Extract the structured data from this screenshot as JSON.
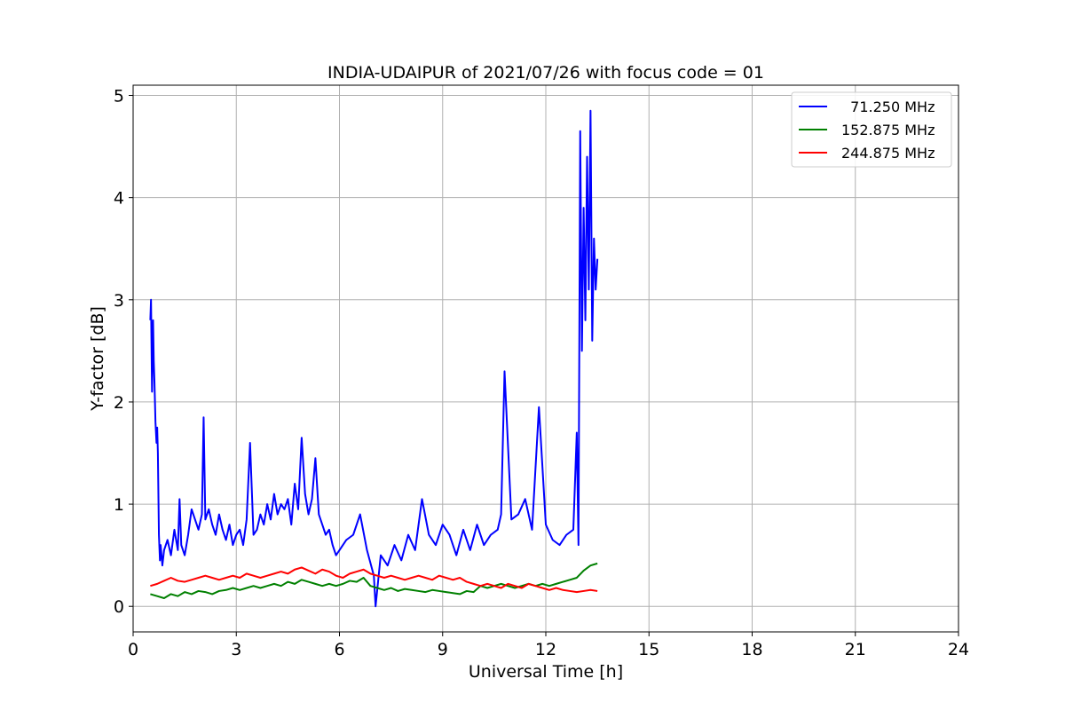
{
  "chart_data": {
    "type": "line",
    "title": "INDIA-UDAIPUR of 2021/07/26 with focus code = 01",
    "xlabel": "Universal Time [h]",
    "ylabel": "Y-factor [dB]",
    "xlim": [
      0,
      24
    ],
    "ylim": [
      -0.25,
      5.1
    ],
    "xticks": [
      0,
      3,
      6,
      9,
      12,
      15,
      18,
      21,
      24
    ],
    "xtick_labels": [
      "0",
      "3",
      "6",
      "9",
      "12",
      "15",
      "18",
      "21",
      "24"
    ],
    "yticks": [
      0,
      1,
      2,
      3,
      4,
      5
    ],
    "ytick_labels": [
      "0",
      "1",
      "2",
      "3",
      "4",
      "5"
    ],
    "grid": true,
    "legend_position": "top-right",
    "series": [
      {
        "name": "  71.250 MHz",
        "color": "#0000ff",
        "x": [
          0.5,
          0.52,
          0.55,
          0.58,
          0.6,
          0.62,
          0.65,
          0.68,
          0.7,
          0.72,
          0.75,
          0.78,
          0.8,
          0.85,
          0.9,
          1.0,
          1.1,
          1.2,
          1.3,
          1.35,
          1.4,
          1.5,
          1.6,
          1.7,
          1.8,
          1.9,
          2.0,
          2.05,
          2.1,
          2.2,
          2.3,
          2.4,
          2.5,
          2.6,
          2.7,
          2.8,
          2.9,
          3.0,
          3.1,
          3.2,
          3.3,
          3.4,
          3.5,
          3.6,
          3.7,
          3.8,
          3.9,
          4.0,
          4.1,
          4.2,
          4.3,
          4.4,
          4.5,
          4.6,
          4.7,
          4.8,
          4.9,
          5.0,
          5.1,
          5.2,
          5.3,
          5.4,
          5.5,
          5.6,
          5.7,
          5.8,
          5.9,
          6.0,
          6.2,
          6.4,
          6.6,
          6.8,
          7.0,
          7.05,
          7.2,
          7.4,
          7.6,
          7.8,
          8.0,
          8.2,
          8.4,
          8.6,
          8.8,
          9.0,
          9.2,
          9.4,
          9.6,
          9.8,
          10.0,
          10.2,
          10.4,
          10.6,
          10.7,
          10.8,
          11.0,
          11.2,
          11.4,
          11.6,
          11.8,
          12.0,
          12.2,
          12.4,
          12.6,
          12.8,
          12.9,
          12.95,
          13.0,
          13.05,
          13.1,
          13.15,
          13.2,
          13.25,
          13.3,
          13.35,
          13.4,
          13.45,
          13.5
        ],
        "y": [
          2.8,
          3.0,
          2.1,
          2.8,
          2.4,
          2.2,
          1.8,
          1.6,
          1.75,
          1.5,
          0.7,
          0.45,
          0.6,
          0.4,
          0.55,
          0.65,
          0.5,
          0.75,
          0.55,
          1.05,
          0.6,
          0.5,
          0.7,
          0.95,
          0.85,
          0.75,
          0.9,
          1.85,
          0.85,
          0.95,
          0.8,
          0.7,
          0.9,
          0.75,
          0.65,
          0.8,
          0.6,
          0.7,
          0.75,
          0.6,
          0.85,
          1.6,
          0.7,
          0.75,
          0.9,
          0.8,
          1.0,
          0.85,
          1.1,
          0.9,
          1.0,
          0.95,
          1.05,
          0.8,
          1.2,
          0.95,
          1.65,
          1.1,
          0.9,
          1.05,
          1.45,
          0.9,
          0.8,
          0.7,
          0.75,
          0.6,
          0.5,
          0.55,
          0.65,
          0.7,
          0.9,
          0.55,
          0.3,
          0.0,
          0.5,
          0.4,
          0.6,
          0.45,
          0.7,
          0.55,
          1.05,
          0.7,
          0.6,
          0.8,
          0.7,
          0.5,
          0.75,
          0.55,
          0.8,
          0.6,
          0.7,
          0.75,
          0.9,
          2.3,
          0.85,
          0.9,
          1.05,
          0.75,
          1.95,
          0.8,
          0.65,
          0.6,
          0.7,
          0.75,
          1.7,
          0.6,
          4.65,
          2.5,
          3.9,
          2.8,
          4.4,
          3.1,
          4.85,
          2.6,
          3.6,
          3.1,
          3.4
        ]
      },
      {
        "name": "152.875 MHz",
        "color": "#008000",
        "x": [
          0.5,
          0.7,
          0.9,
          1.1,
          1.3,
          1.5,
          1.7,
          1.9,
          2.1,
          2.3,
          2.5,
          2.7,
          2.9,
          3.1,
          3.3,
          3.5,
          3.7,
          3.9,
          4.1,
          4.3,
          4.5,
          4.7,
          4.9,
          5.1,
          5.3,
          5.5,
          5.7,
          5.9,
          6.1,
          6.3,
          6.5,
          6.7,
          6.9,
          7.1,
          7.3,
          7.5,
          7.7,
          7.9,
          8.1,
          8.3,
          8.5,
          8.7,
          8.9,
          9.1,
          9.3,
          9.5,
          9.7,
          9.9,
          10.1,
          10.3,
          10.5,
          10.7,
          10.9,
          11.1,
          11.3,
          11.5,
          11.7,
          11.9,
          12.1,
          12.3,
          12.5,
          12.7,
          12.9,
          13.1,
          13.3,
          13.5
        ],
        "y": [
          0.12,
          0.1,
          0.08,
          0.12,
          0.1,
          0.14,
          0.12,
          0.15,
          0.14,
          0.12,
          0.15,
          0.16,
          0.18,
          0.16,
          0.18,
          0.2,
          0.18,
          0.2,
          0.22,
          0.2,
          0.24,
          0.22,
          0.26,
          0.24,
          0.22,
          0.2,
          0.22,
          0.2,
          0.22,
          0.25,
          0.24,
          0.28,
          0.2,
          0.18,
          0.16,
          0.18,
          0.15,
          0.17,
          0.16,
          0.15,
          0.14,
          0.16,
          0.15,
          0.14,
          0.13,
          0.12,
          0.15,
          0.14,
          0.2,
          0.18,
          0.2,
          0.22,
          0.2,
          0.18,
          0.2,
          0.22,
          0.2,
          0.22,
          0.2,
          0.22,
          0.24,
          0.26,
          0.28,
          0.35,
          0.4,
          0.42
        ]
      },
      {
        "name": "244.875 MHz",
        "color": "#ff0000",
        "x": [
          0.5,
          0.7,
          0.9,
          1.1,
          1.3,
          1.5,
          1.7,
          1.9,
          2.1,
          2.3,
          2.5,
          2.7,
          2.9,
          3.1,
          3.3,
          3.5,
          3.7,
          3.9,
          4.1,
          4.3,
          4.5,
          4.7,
          4.9,
          5.1,
          5.3,
          5.5,
          5.7,
          5.9,
          6.1,
          6.3,
          6.5,
          6.7,
          6.9,
          7.1,
          7.3,
          7.5,
          7.7,
          7.9,
          8.1,
          8.3,
          8.5,
          8.7,
          8.9,
          9.1,
          9.3,
          9.5,
          9.7,
          9.9,
          10.1,
          10.3,
          10.5,
          10.7,
          10.9,
          11.1,
          11.3,
          11.5,
          11.7,
          11.9,
          12.1,
          12.3,
          12.5,
          12.7,
          12.9,
          13.1,
          13.3,
          13.5
        ],
        "y": [
          0.2,
          0.22,
          0.25,
          0.28,
          0.25,
          0.24,
          0.26,
          0.28,
          0.3,
          0.28,
          0.26,
          0.28,
          0.3,
          0.28,
          0.32,
          0.3,
          0.28,
          0.3,
          0.32,
          0.34,
          0.32,
          0.36,
          0.38,
          0.35,
          0.32,
          0.36,
          0.34,
          0.3,
          0.28,
          0.32,
          0.34,
          0.36,
          0.32,
          0.3,
          0.28,
          0.3,
          0.28,
          0.26,
          0.28,
          0.3,
          0.28,
          0.26,
          0.3,
          0.28,
          0.26,
          0.28,
          0.24,
          0.22,
          0.2,
          0.22,
          0.2,
          0.18,
          0.22,
          0.2,
          0.18,
          0.22,
          0.2,
          0.18,
          0.16,
          0.18,
          0.16,
          0.15,
          0.14,
          0.15,
          0.16,
          0.15
        ]
      }
    ]
  }
}
